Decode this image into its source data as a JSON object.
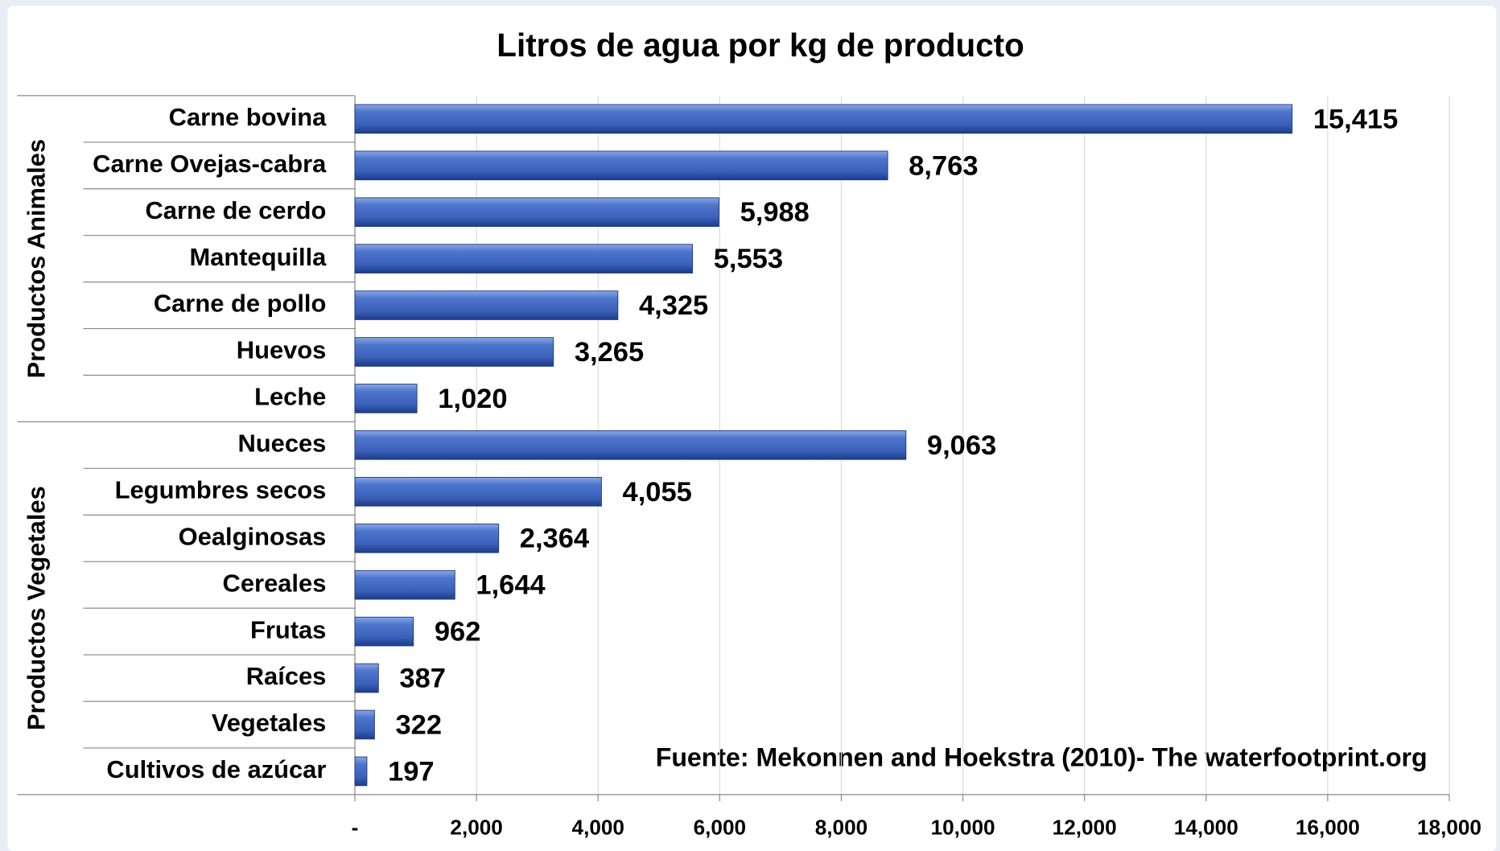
{
  "chart_data": {
    "type": "bar",
    "orientation": "horizontal",
    "title": "Litros de agua por kg de producto",
    "note": "Fuente: Mekonnen and Hoekstra (2010)- The waterfootprint.org",
    "color": "#3c64c0",
    "groups": [
      {
        "name": "Productos Animales",
        "categories": [
          "Carne bovina",
          "Carne Ovejas-cabra",
          "Carne de cerdo",
          "Mantequilla",
          "Carne de pollo",
          "Huevos",
          "Leche"
        ],
        "values": [
          15415,
          8763,
          5988,
          5553,
          4325,
          3265,
          1020
        ],
        "value_labels": [
          "15,415",
          "8,763",
          "5,988",
          "5,553",
          "4,325",
          "3,265",
          "1,020"
        ]
      },
      {
        "name": "Productos Vegetales",
        "categories": [
          "Nueces",
          "Legumbres secos",
          "Oealginosas",
          "Cereales",
          "Frutas",
          "Raíces",
          "Vegetales",
          "Cultivos de azúcar"
        ],
        "values": [
          9063,
          4055,
          2364,
          1644,
          962,
          387,
          322,
          197
        ],
        "value_labels": [
          "9,063",
          "4,055",
          "2,364",
          "1,644",
          962,
          387,
          322,
          197
        ]
      }
    ],
    "xlim": [
      0,
      18000
    ],
    "xticks": [
      {
        "value": 0,
        "label": "-"
      },
      {
        "value": 2000,
        "label": "2,000"
      },
      {
        "value": 4000,
        "label": "4,000"
      },
      {
        "value": 6000,
        "label": "6,000"
      },
      {
        "value": 8000,
        "label": "8,000"
      },
      {
        "value": 10000,
        "label": "10,000"
      },
      {
        "value": 12000,
        "label": "12,000"
      },
      {
        "value": 14000,
        "label": "14,000"
      },
      {
        "value": 16000,
        "label": "16,000"
      },
      {
        "value": 18000,
        "label": "18,000"
      }
    ],
    "grid": true
  }
}
